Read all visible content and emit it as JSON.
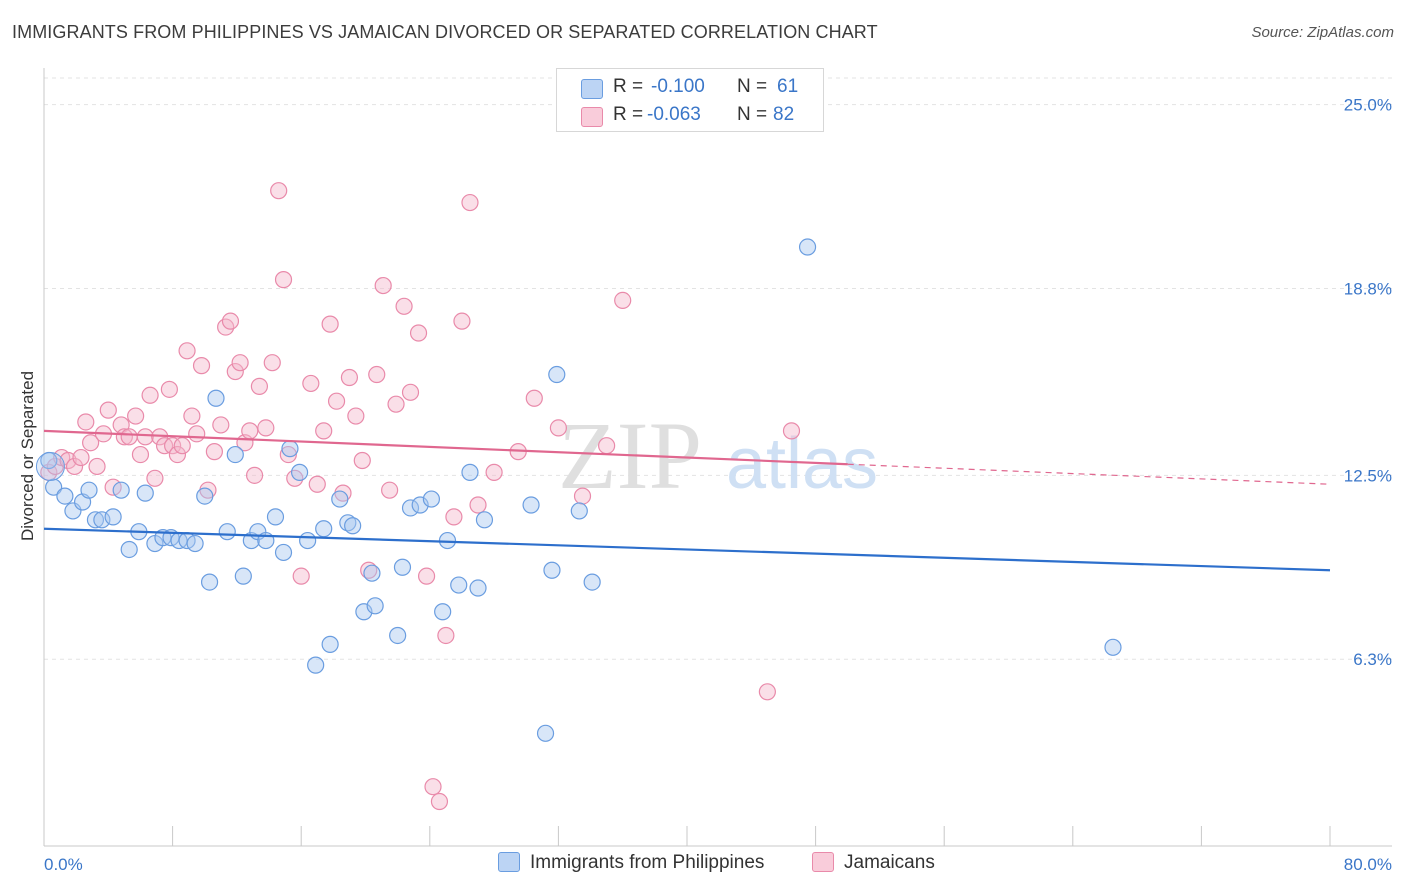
{
  "title": "IMMIGRANTS FROM PHILIPPINES VS JAMAICAN DIVORCED OR SEPARATED CORRELATION CHART",
  "source": "Source: ZipAtlas.com",
  "watermark": {
    "zip": "ZIP",
    "atlas": "atlas"
  },
  "legend": {
    "rows": [
      {
        "r_label": "R =",
        "r_value": "-0.100",
        "n_label": "N =",
        "n_value": "61"
      },
      {
        "r_label": "R =",
        "r_value": "-0.063",
        "n_label": "N =",
        "n_value": "82"
      }
    ]
  },
  "colors": {
    "blue_fill": "#a9c8f0",
    "blue_stroke": "#6a9de0",
    "blue_line": "#2d6fcc",
    "pink_fill": "#f5b8cc",
    "pink_stroke": "#e98aaa",
    "pink_line": "#e0678f",
    "tick_label": "#3a76c8",
    "grid": "#e3e3e3"
  },
  "chart_data": {
    "type": "scatter",
    "title": "IMMIGRANTS FROM PHILIPPINES VS JAMAICAN DIVORCED OR SEPARATED CORRELATION CHART",
    "xlabel": "",
    "ylabel": "Divorced or Separated",
    "xlim": [
      0,
      80
    ],
    "ylim": [
      0,
      25.9
    ],
    "x_tick_labels": [
      "0.0%",
      "80.0%"
    ],
    "y_ticks": [
      {
        "value": 6.3,
        "label": "6.3%"
      },
      {
        "value": 12.5,
        "label": "12.5%"
      },
      {
        "value": 18.8,
        "label": "18.8%"
      },
      {
        "value": 25.0,
        "label": "25.0%"
      }
    ],
    "grid": true,
    "legend_position": "top-center",
    "series": [
      {
        "name": "Immigrants from Philippines",
        "color": "#a9c8f0",
        "trend": {
          "x": [
            0,
            80
          ],
          "y": [
            10.7,
            9.3
          ]
        },
        "points": [
          [
            0.3,
            13.0
          ],
          [
            0.6,
            12.1
          ],
          [
            1.3,
            11.8
          ],
          [
            1.8,
            11.3
          ],
          [
            2.4,
            11.6
          ],
          [
            2.8,
            12.0
          ],
          [
            3.2,
            11.0
          ],
          [
            3.6,
            11.0
          ],
          [
            4.3,
            11.1
          ],
          [
            4.8,
            12.0
          ],
          [
            5.3,
            10.0
          ],
          [
            5.9,
            10.6
          ],
          [
            6.3,
            11.9
          ],
          [
            6.9,
            10.2
          ],
          [
            7.4,
            10.4
          ],
          [
            7.9,
            10.4
          ],
          [
            8.4,
            10.3
          ],
          [
            8.9,
            10.3
          ],
          [
            9.4,
            10.2
          ],
          [
            10.0,
            11.8
          ],
          [
            10.3,
            8.9
          ],
          [
            10.7,
            15.1
          ],
          [
            11.4,
            10.6
          ],
          [
            11.9,
            13.2
          ],
          [
            12.4,
            9.1
          ],
          [
            12.9,
            10.3
          ],
          [
            13.3,
            10.6
          ],
          [
            13.8,
            10.3
          ],
          [
            14.4,
            11.1
          ],
          [
            14.9,
            9.9
          ],
          [
            15.3,
            13.4
          ],
          [
            15.9,
            12.6
          ],
          [
            16.4,
            10.3
          ],
          [
            16.9,
            6.1
          ],
          [
            17.4,
            10.7
          ],
          [
            17.8,
            6.8
          ],
          [
            18.4,
            11.7
          ],
          [
            18.9,
            10.9
          ],
          [
            19.2,
            10.8
          ],
          [
            19.9,
            7.9
          ],
          [
            20.4,
            9.2
          ],
          [
            20.6,
            8.1
          ],
          [
            22.0,
            7.1
          ],
          [
            22.3,
            9.4
          ],
          [
            22.8,
            11.4
          ],
          [
            23.4,
            11.5
          ],
          [
            24.1,
            11.7
          ],
          [
            24.8,
            7.9
          ],
          [
            25.1,
            10.3
          ],
          [
            25.8,
            8.8
          ],
          [
            26.5,
            12.6
          ],
          [
            27.0,
            8.7
          ],
          [
            27.4,
            11.0
          ],
          [
            30.3,
            11.5
          ],
          [
            31.2,
            3.8
          ],
          [
            31.6,
            9.3
          ],
          [
            31.9,
            15.9
          ],
          [
            33.3,
            11.3
          ],
          [
            34.1,
            8.9
          ],
          [
            47.5,
            20.2
          ],
          [
            66.5,
            6.7
          ]
        ]
      },
      {
        "name": "Jamaicans",
        "color": "#f5b8cc",
        "trend": {
          "x": [
            0,
            80
          ],
          "y": [
            14.0,
            12.2
          ],
          "solid_until_x": 50
        },
        "points": [
          [
            0.3,
            12.6
          ],
          [
            0.7,
            12.8
          ],
          [
            1.1,
            13.1
          ],
          [
            1.5,
            13.0
          ],
          [
            1.9,
            12.8
          ],
          [
            2.3,
            13.1
          ],
          [
            2.6,
            14.3
          ],
          [
            2.9,
            13.6
          ],
          [
            3.3,
            12.8
          ],
          [
            3.7,
            13.9
          ],
          [
            4.0,
            14.7
          ],
          [
            4.3,
            12.1
          ],
          [
            4.8,
            14.2
          ],
          [
            5.0,
            13.8
          ],
          [
            5.3,
            13.8
          ],
          [
            5.7,
            14.5
          ],
          [
            6.0,
            13.2
          ],
          [
            6.3,
            13.8
          ],
          [
            6.6,
            15.2
          ],
          [
            6.9,
            12.4
          ],
          [
            7.2,
            13.8
          ],
          [
            7.5,
            13.5
          ],
          [
            7.8,
            15.4
          ],
          [
            8.0,
            13.5
          ],
          [
            8.3,
            13.2
          ],
          [
            8.6,
            13.5
          ],
          [
            8.9,
            16.7
          ],
          [
            9.2,
            14.5
          ],
          [
            9.5,
            13.9
          ],
          [
            9.8,
            16.2
          ],
          [
            10.2,
            12.0
          ],
          [
            10.6,
            13.3
          ],
          [
            11.0,
            14.2
          ],
          [
            11.3,
            17.5
          ],
          [
            11.6,
            17.7
          ],
          [
            11.9,
            16.0
          ],
          [
            12.2,
            16.3
          ],
          [
            12.5,
            13.6
          ],
          [
            12.8,
            14.0
          ],
          [
            13.1,
            12.5
          ],
          [
            13.4,
            15.5
          ],
          [
            13.8,
            14.1
          ],
          [
            14.2,
            16.3
          ],
          [
            14.6,
            22.1
          ],
          [
            14.9,
            19.1
          ],
          [
            15.2,
            13.2
          ],
          [
            15.6,
            12.4
          ],
          [
            16.0,
            9.1
          ],
          [
            16.6,
            15.6
          ],
          [
            17.0,
            12.2
          ],
          [
            17.4,
            14.0
          ],
          [
            17.8,
            17.6
          ],
          [
            18.2,
            15.0
          ],
          [
            18.6,
            11.9
          ],
          [
            19.0,
            15.8
          ],
          [
            19.4,
            14.5
          ],
          [
            19.8,
            13.0
          ],
          [
            20.2,
            9.3
          ],
          [
            20.7,
            15.9
          ],
          [
            21.1,
            18.9
          ],
          [
            21.5,
            12.0
          ],
          [
            21.9,
            14.9
          ],
          [
            22.4,
            18.2
          ],
          [
            22.8,
            15.3
          ],
          [
            23.3,
            17.3
          ],
          [
            23.8,
            9.1
          ],
          [
            24.2,
            2.0
          ],
          [
            24.6,
            1.5
          ],
          [
            25.0,
            7.1
          ],
          [
            25.5,
            11.1
          ],
          [
            26.0,
            17.7
          ],
          [
            26.5,
            21.7
          ],
          [
            27.0,
            11.5
          ],
          [
            28.0,
            12.6
          ],
          [
            29.5,
            13.3
          ],
          [
            30.5,
            15.1
          ],
          [
            32.0,
            14.1
          ],
          [
            33.5,
            11.8
          ],
          [
            35.0,
            13.5
          ],
          [
            36.0,
            18.4
          ],
          [
            45.0,
            5.2
          ],
          [
            46.5,
            14.0
          ]
        ]
      }
    ]
  }
}
